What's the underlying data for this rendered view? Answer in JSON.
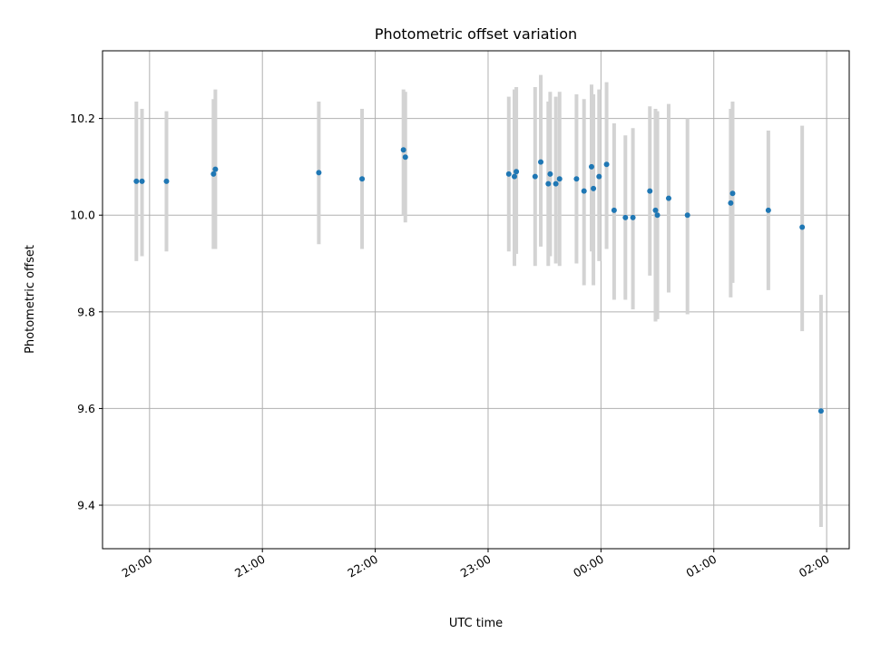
{
  "chart_data": {
    "type": "scatter",
    "title": "Photometric offset variation",
    "xlabel": "UTC time",
    "ylabel": "Photometric offset",
    "xlim": [
      "19:35",
      "02:12"
    ],
    "ylim": [
      9.31,
      10.34
    ],
    "x_ticks": [
      "20:00",
      "21:00",
      "22:00",
      "23:00",
      "00:00",
      "01:00",
      "02:00"
    ],
    "y_ticks": [
      "9.4",
      "9.6",
      "9.8",
      "10.0",
      "10.2"
    ],
    "grid": true,
    "marker_color": "#1f77b4",
    "errorbar_color": "#d3d3d3",
    "points": [
      {
        "x": "19:53",
        "y": 10.07,
        "ylo": 9.905,
        "yhi": 10.235
      },
      {
        "x": "19:56",
        "y": 10.07,
        "ylo": 9.915,
        "yhi": 10.22
      },
      {
        "x": "20:09",
        "y": 10.07,
        "ylo": 9.925,
        "yhi": 10.215
      },
      {
        "x": "20:34",
        "y": 10.085,
        "ylo": 9.93,
        "yhi": 10.24
      },
      {
        "x": "20:35",
        "y": 10.095,
        "ylo": 9.93,
        "yhi": 10.26
      },
      {
        "x": "21:30",
        "y": 10.088,
        "ylo": 9.94,
        "yhi": 10.235
      },
      {
        "x": "21:53",
        "y": 10.075,
        "ylo": 9.93,
        "yhi": 10.22
      },
      {
        "x": "22:15",
        "y": 10.135,
        "ylo": 10.0,
        "yhi": 10.26
      },
      {
        "x": "22:16",
        "y": 10.12,
        "ylo": 9.985,
        "yhi": 10.255
      },
      {
        "x": "23:11",
        "y": 10.085,
        "ylo": 9.925,
        "yhi": 10.245
      },
      {
        "x": "23:14",
        "y": 10.08,
        "ylo": 9.895,
        "yhi": 10.26
      },
      {
        "x": "23:15",
        "y": 10.09,
        "ylo": 9.92,
        "yhi": 10.265
      },
      {
        "x": "23:25",
        "y": 10.08,
        "ylo": 9.895,
        "yhi": 10.265
      },
      {
        "x": "23:28",
        "y": 10.11,
        "ylo": 9.935,
        "yhi": 10.29
      },
      {
        "x": "23:32",
        "y": 10.065,
        "ylo": 9.895,
        "yhi": 10.235
      },
      {
        "x": "23:33",
        "y": 10.085,
        "ylo": 9.915,
        "yhi": 10.255
      },
      {
        "x": "23:36",
        "y": 10.065,
        "ylo": 9.9,
        "yhi": 10.245
      },
      {
        "x": "23:38",
        "y": 10.075,
        "ylo": 9.895,
        "yhi": 10.255
      },
      {
        "x": "23:47",
        "y": 10.075,
        "ylo": 9.9,
        "yhi": 10.25
      },
      {
        "x": "23:51",
        "y": 10.05,
        "ylo": 9.855,
        "yhi": 10.24
      },
      {
        "x": "23:55",
        "y": 10.1,
        "ylo": 9.925,
        "yhi": 10.27
      },
      {
        "x": "23:56",
        "y": 10.055,
        "ylo": 9.855,
        "yhi": 10.25
      },
      {
        "x": "23:59",
        "y": 10.08,
        "ylo": 9.905,
        "yhi": 10.26
      },
      {
        "x": "00:03",
        "y": 10.105,
        "ylo": 9.93,
        "yhi": 10.275
      },
      {
        "x": "00:07",
        "y": 10.01,
        "ylo": 9.825,
        "yhi": 10.19
      },
      {
        "x": "00:13",
        "y": 9.995,
        "ylo": 9.825,
        "yhi": 10.165
      },
      {
        "x": "00:17",
        "y": 9.995,
        "ylo": 9.805,
        "yhi": 10.18
      },
      {
        "x": "00:26",
        "y": 10.05,
        "ylo": 9.875,
        "yhi": 10.225
      },
      {
        "x": "00:29",
        "y": 10.01,
        "ylo": 9.78,
        "yhi": 10.22
      },
      {
        "x": "00:30",
        "y": 10.0,
        "ylo": 9.785,
        "yhi": 10.215
      },
      {
        "x": "00:36",
        "y": 10.035,
        "ylo": 9.84,
        "yhi": 10.23
      },
      {
        "x": "00:46",
        "y": 10.0,
        "ylo": 9.795,
        "yhi": 10.2
      },
      {
        "x": "01:09",
        "y": 10.025,
        "ylo": 9.83,
        "yhi": 10.22
      },
      {
        "x": "01:10",
        "y": 10.045,
        "ylo": 9.86,
        "yhi": 10.235
      },
      {
        "x": "01:29",
        "y": 10.01,
        "ylo": 9.845,
        "yhi": 10.175
      },
      {
        "x": "01:47",
        "y": 9.975,
        "ylo": 9.76,
        "yhi": 10.185
      },
      {
        "x": "01:57",
        "y": 9.595,
        "ylo": 9.355,
        "yhi": 9.835
      }
    ]
  }
}
